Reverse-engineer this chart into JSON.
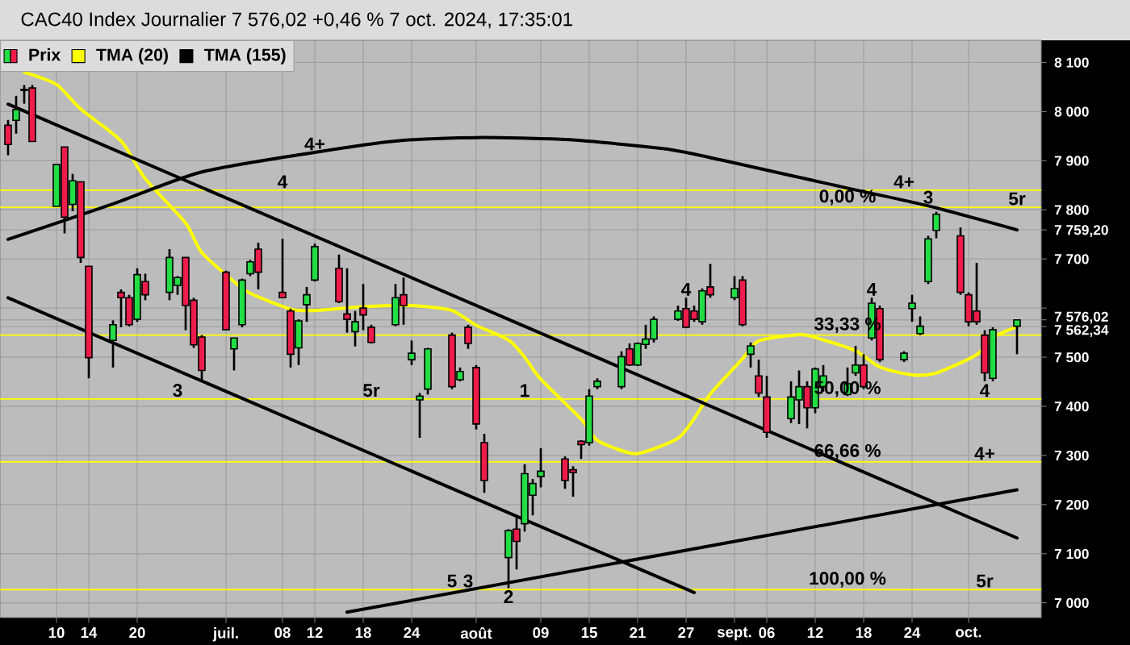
{
  "chart_data": {
    "type": "candlestick",
    "title": "CAC40 Index Journalier 7 576,02 +0,46 % 7 oct. 2024, 17:35:01",
    "x": [
      "2024-06-04",
      "2024-06-05",
      "2024-06-06",
      "2024-06-07",
      "2024-06-10",
      "2024-06-11",
      "2024-06-12",
      "2024-06-13",
      "2024-06-14",
      "2024-06-17",
      "2024-06-18",
      "2024-06-19",
      "2024-06-20",
      "2024-06-21",
      "2024-06-24",
      "2024-06-25",
      "2024-06-26",
      "2024-06-27",
      "2024-06-28",
      "2024-07-01",
      "2024-07-02",
      "2024-07-03",
      "2024-07-04",
      "2024-07-05",
      "2024-07-08",
      "2024-07-09",
      "2024-07-10",
      "2024-07-11",
      "2024-07-12",
      "2024-07-15",
      "2024-07-16",
      "2024-07-17",
      "2024-07-18",
      "2024-07-19",
      "2024-07-22",
      "2024-07-23",
      "2024-07-24",
      "2024-07-25",
      "2024-07-26",
      "2024-07-29",
      "2024-07-30",
      "2024-07-31",
      "2024-08-01",
      "2024-08-02",
      "2024-08-05",
      "2024-08-06",
      "2024-08-07",
      "2024-08-08",
      "2024-08-09",
      "2024-08-12",
      "2024-08-13",
      "2024-08-14",
      "2024-08-15",
      "2024-08-16",
      "2024-08-19",
      "2024-08-20",
      "2024-08-21",
      "2024-08-22",
      "2024-08-23",
      "2024-08-26",
      "2024-08-27",
      "2024-08-28",
      "2024-08-29",
      "2024-08-30",
      "2024-09-02",
      "2024-09-03",
      "2024-09-04",
      "2024-09-05",
      "2024-09-06",
      "2024-09-09",
      "2024-09-10",
      "2024-09-11",
      "2024-09-12",
      "2024-09-13",
      "2024-09-16",
      "2024-09-17",
      "2024-09-18",
      "2024-09-19",
      "2024-09-20",
      "2024-09-23",
      "2024-09-24",
      "2024-09-25",
      "2024-09-26",
      "2024-09-27",
      "2024-09-30",
      "2024-10-01",
      "2024-10-02",
      "2024-10-03",
      "2024-10-04",
      "2024-10-07"
    ],
    "xlim": [
      "2024-06-03",
      "2024-10-10"
    ],
    "xticks": [
      {
        "value": "2024-06-10",
        "label": "10"
      },
      {
        "value": "2024-06-14",
        "label": "14"
      },
      {
        "value": "2024-06-20",
        "label": "20"
      },
      {
        "value": "2024-07-01",
        "label": "juil."
      },
      {
        "value": "2024-07-08",
        "label": "08"
      },
      {
        "value": "2024-07-12",
        "label": "12"
      },
      {
        "value": "2024-07-18",
        "label": "18"
      },
      {
        "value": "2024-07-24",
        "label": "24"
      },
      {
        "value": "2024-08-01",
        "label": "août"
      },
      {
        "value": "2024-08-09",
        "label": "09"
      },
      {
        "value": "2024-08-15",
        "label": "15"
      },
      {
        "value": "2024-08-21",
        "label": "21"
      },
      {
        "value": "2024-08-27",
        "label": "27"
      },
      {
        "value": "2024-09-02",
        "label": "sept."
      },
      {
        "value": "2024-09-06",
        "label": "06"
      },
      {
        "value": "2024-09-12",
        "label": "12"
      },
      {
        "value": "2024-09-18",
        "label": "18"
      },
      {
        "value": "2024-09-24",
        "label": "24"
      },
      {
        "value": "2024-10-01",
        "label": "oct."
      }
    ],
    "ylim": [
      6970,
      8145
    ],
    "yticks": [
      {
        "value": 7000,
        "label": "7 000"
      },
      {
        "value": 7100,
        "label": "7 100"
      },
      {
        "value": 7200,
        "label": "7 200"
      },
      {
        "value": 7300,
        "label": "7 300"
      },
      {
        "value": 7400,
        "label": "7 400"
      },
      {
        "value": 7500,
        "label": "7 500"
      },
      {
        "value": 7562.34,
        "label": "7 562,34"
      },
      {
        "value": 7576.02,
        "label": "7 576,02"
      },
      {
        "value": 7600,
        "label": null
      },
      {
        "value": 7700,
        "label": "7 700"
      },
      {
        "value": 7759.2,
        "label": "7 759,20"
      },
      {
        "value": 7800,
        "label": "7 800"
      },
      {
        "value": 7900,
        "label": "7 900"
      },
      {
        "value": 8000,
        "label": "8 000"
      },
      {
        "value": 8100,
        "label": "8 100"
      }
    ],
    "grid": true,
    "legend": "top left",
    "series": [
      {
        "name": "Prix",
        "ohlc": [
          [
            7972,
            7983,
            7911,
            7933
          ],
          [
            7982,
            8032,
            7955,
            8004
          ],
          [
            8043,
            8054,
            8016,
            8045
          ],
          [
            8048,
            8054,
            7939,
            7939
          ],
          [
            7807,
            7892,
            7807,
            7892
          ],
          [
            7928,
            7928,
            7752,
            7785
          ],
          [
            7811,
            7873,
            7797,
            7859
          ],
          [
            7857,
            7857,
            7692,
            7703
          ],
          [
            7685,
            7685,
            7457,
            7499
          ],
          [
            7534,
            7575,
            7479,
            7566
          ],
          [
            7632,
            7638,
            7561,
            7621
          ],
          [
            7621,
            7627,
            7563,
            7566
          ],
          [
            7577,
            7681,
            7572,
            7668
          ],
          [
            7654,
            7670,
            7616,
            7627
          ],
          [
            7632,
            7720,
            7616,
            7703
          ],
          [
            7646,
            7665,
            7627,
            7662
          ],
          [
            7703,
            7703,
            7555,
            7605
          ],
          [
            7616,
            7621,
            7519,
            7525
          ],
          [
            7541,
            7545,
            7451,
            7473
          ],
          [
            7673,
            7676,
            7556,
            7556
          ],
          [
            7517,
            7539,
            7473,
            7539
          ],
          [
            7566,
            7660,
            7561,
            7657
          ],
          [
            7670,
            7698,
            7665,
            7694
          ],
          [
            7720,
            7733,
            7638,
            7673
          ],
          [
            7632,
            7741,
            7621,
            7621
          ],
          [
            7594,
            7599,
            7479,
            7506
          ],
          [
            7519,
            7577,
            7484,
            7574
          ],
          [
            7607,
            7643,
            7572,
            7627
          ],
          [
            7657,
            7731,
            7654,
            7725
          ],
          [
            7681,
            7709,
            7610,
            7613
          ],
          [
            7588,
            7681,
            7550,
            7577
          ],
          [
            7552,
            7594,
            7522,
            7572
          ],
          [
            7600,
            7649,
            7555,
            7586
          ],
          [
            7561,
            7566,
            7528,
            7530
          ],
          [
            7566,
            7649,
            7563,
            7621
          ],
          [
            7627,
            7662,
            7566,
            7605
          ],
          [
            7495,
            7534,
            7484,
            7508
          ],
          [
            7413,
            7427,
            7336,
            7421
          ],
          [
            7435,
            7519,
            7424,
            7517
          ],
          [
            7545,
            7550,
            7435,
            7440
          ],
          [
            7454,
            7479,
            7451,
            7471
          ],
          [
            7561,
            7566,
            7517,
            7528
          ],
          [
            7479,
            7484,
            7353,
            7364
          ],
          [
            7326,
            7344,
            7224,
            7249
          ],
          [
            7092,
            7150,
            7030,
            7147
          ],
          [
            7150,
            7178,
            7068,
            7125
          ],
          [
            7161,
            7282,
            7145,
            7263
          ],
          [
            7219,
            7252,
            7178,
            7243
          ],
          [
            7257,
            7315,
            7235,
            7268
          ],
          [
            7293,
            7298,
            7232,
            7249
          ],
          [
            7271,
            7278,
            7216,
            7265
          ],
          [
            7329,
            7331,
            7293,
            7322
          ],
          [
            7326,
            7435,
            7320,
            7421
          ],
          [
            7440,
            7457,
            7435,
            7451
          ],
          [
            7440,
            7512,
            7435,
            7501
          ],
          [
            7517,
            7528,
            7482,
            7484
          ],
          [
            7484,
            7530,
            7482,
            7528
          ],
          [
            7526,
            7566,
            7517,
            7537
          ],
          [
            7537,
            7583,
            7530,
            7577
          ],
          [
            7577,
            7605,
            7574,
            7594
          ],
          [
            7599,
            7621,
            7559,
            7561
          ],
          [
            7594,
            7605,
            7572,
            7577
          ],
          [
            7572,
            7640,
            7566,
            7635
          ],
          [
            7643,
            7690,
            7621,
            7627
          ],
          [
            7621,
            7665,
            7616,
            7640
          ],
          [
            7657,
            7665,
            7563,
            7566
          ],
          [
            7506,
            7530,
            7479,
            7523
          ],
          [
            7462,
            7495,
            7419,
            7427
          ],
          [
            7419,
            7462,
            7336,
            7347
          ],
          [
            7375,
            7451,
            7366,
            7419
          ],
          [
            7413,
            7473,
            7364,
            7440
          ],
          [
            7440,
            7451,
            7355,
            7397
          ],
          [
            7397,
            7479,
            7386,
            7476
          ],
          [
            7440,
            7484,
            7430,
            7462
          ],
          [
            7424,
            7479,
            7421,
            7446
          ],
          [
            7468,
            7523,
            7462,
            7484
          ],
          [
            7484,
            7506,
            7435,
            7440
          ],
          [
            7539,
            7621,
            7534,
            7610
          ],
          [
            7599,
            7605,
            7490,
            7495
          ],
          [
            7495,
            7512,
            7490,
            7508
          ],
          [
            7599,
            7627,
            7572,
            7610
          ],
          [
            7548,
            7583,
            7545,
            7563
          ],
          [
            7654,
            7747,
            7649,
            7741
          ],
          [
            7758,
            7796,
            7742,
            7791
          ],
          [
            7747,
            7764,
            7627,
            7632
          ],
          [
            7627,
            7632,
            7563,
            7572
          ],
          [
            7594,
            7692,
            7566,
            7572
          ],
          [
            7545,
            7555,
            7451,
            7468
          ],
          [
            7457,
            7561,
            7451,
            7556
          ],
          [
            7563,
            7577,
            7506,
            7576.02
          ]
        ]
      },
      {
        "name": "TMA (20)",
        "type": "line",
        "color": "#ffff00",
        "x": [
          "2024-06-06",
          "2024-06-10",
          "2024-06-13",
          "2024-06-18",
          "2024-06-21",
          "2024-06-26",
          "2024-06-28",
          "2024-07-02",
          "2024-07-04",
          "2024-07-09",
          "2024-07-12",
          "2024-07-17",
          "2024-07-22",
          "2024-07-25",
          "2024-07-29",
          "2024-08-01",
          "2024-08-05",
          "2024-08-07",
          "2024-08-09",
          "2024-08-14",
          "2024-08-16",
          "2024-08-20",
          "2024-08-22",
          "2024-08-26",
          "2024-08-28",
          "2024-08-30",
          "2024-09-03",
          "2024-09-05",
          "2024-09-10",
          "2024-09-12",
          "2024-09-17",
          "2024-09-20",
          "2024-09-24",
          "2024-09-27",
          "2024-10-02",
          "2024-10-04",
          "2024-10-07"
        ],
        "values": [
          8080,
          8055,
          8005,
          7940,
          7863,
          7773,
          7713,
          7654,
          7630,
          7598,
          7595,
          7602,
          7605,
          7604,
          7595,
          7565,
          7535,
          7500,
          7455,
          7374,
          7331,
          7305,
          7308,
          7335,
          7375,
          7425,
          7497,
          7533,
          7546,
          7540,
          7513,
          7480,
          7464,
          7468,
          7505,
          7540,
          7562.34
        ]
      },
      {
        "name": "TMA (155)",
        "type": "line",
        "color": "#000000",
        "x": [
          "2024-06-04",
          "2024-06-17",
          "2024-06-28",
          "2024-07-12",
          "2024-07-22",
          "2024-08-01",
          "2024-08-12",
          "2024-08-21",
          "2024-08-27",
          "2024-09-16",
          "2024-09-26",
          "2024-10-07"
        ],
        "values": [
          7740,
          7812,
          7877,
          7917,
          7940,
          7947,
          7943,
          7930,
          7917,
          7844,
          7808,
          7759.2
        ]
      },
      {
        "type": "line",
        "color": "#000000",
        "x": [
          "2024-06-04",
          "2024-10-07"
        ],
        "values": [
          8015,
          7132
        ]
      },
      {
        "type": "line",
        "color": "#000000",
        "x": [
          "2024-06-04",
          "2024-08-28"
        ],
        "values": [
          7621,
          7021
        ]
      },
      {
        "type": "line",
        "color": "#000000",
        "x": [
          "2024-07-16",
          "2024-10-07"
        ],
        "values": [
          6981,
          7230
        ]
      }
    ],
    "ref_lines": [
      {
        "axis": "y",
        "value": 7840,
        "color": "#ffff00"
      },
      {
        "axis": "y",
        "value": 7805,
        "color": "#ffff00"
      },
      {
        "axis": "y",
        "value": 7545,
        "color": "#ffff00"
      },
      {
        "axis": "y",
        "value": 7415,
        "color": "#ffff00"
      },
      {
        "axis": "y",
        "value": 7287,
        "color": "#ffff00"
      },
      {
        "axis": "y",
        "value": 7027,
        "color": "#ffff00"
      }
    ],
    "annotations": [
      {
        "text": "4+",
        "x": "2024-07-12",
        "y": 7917
      },
      {
        "text": "4",
        "x": "2024-07-08",
        "y": 7840
      },
      {
        "text": "3",
        "x": "2024-06-25",
        "y": 7415
      },
      {
        "text": "5r",
        "x": "2024-07-19",
        "y": 7415
      },
      {
        "text": "1",
        "x": "2024-08-07",
        "y": 7415
      },
      {
        "text": "5",
        "x": "2024-07-29",
        "y": 7027
      },
      {
        "text": "3",
        "x": "2024-07-31",
        "y": 7027
      },
      {
        "text": "2",
        "x": "2024-08-05",
        "y": 7030
      },
      {
        "text": "4",
        "x": "2024-08-27",
        "y": 7621
      },
      {
        "text": "4+",
        "x": "2024-09-23",
        "y": 7840
      },
      {
        "text": "3",
        "x": "2024-09-26",
        "y": 7808
      },
      {
        "text": "5r",
        "x": "2024-10-07",
        "y": 7805
      },
      {
        "text": "4",
        "x": "2024-09-19",
        "y": 7621
      },
      {
        "text": "4",
        "x": "2024-10-03",
        "y": 7415
      },
      {
        "text": "4+",
        "x": "2024-10-03",
        "y": 7287
      },
      {
        "text": "5r",
        "x": "2024-10-03",
        "y": 7027
      },
      {
        "text": "0,00 %",
        "x": "2024-09-16",
        "y": 7805
      },
      {
        "text": "33,33 %",
        "x": "2024-09-16",
        "y": 7545
      },
      {
        "text": "50,00 %",
        "x": "2024-09-16",
        "y": 7415
      },
      {
        "text": "66,66 %",
        "x": "2024-09-16",
        "y": 7287
      },
      {
        "text": "100,00 %",
        "x": "2024-09-16",
        "y": 7027
      }
    ]
  }
}
